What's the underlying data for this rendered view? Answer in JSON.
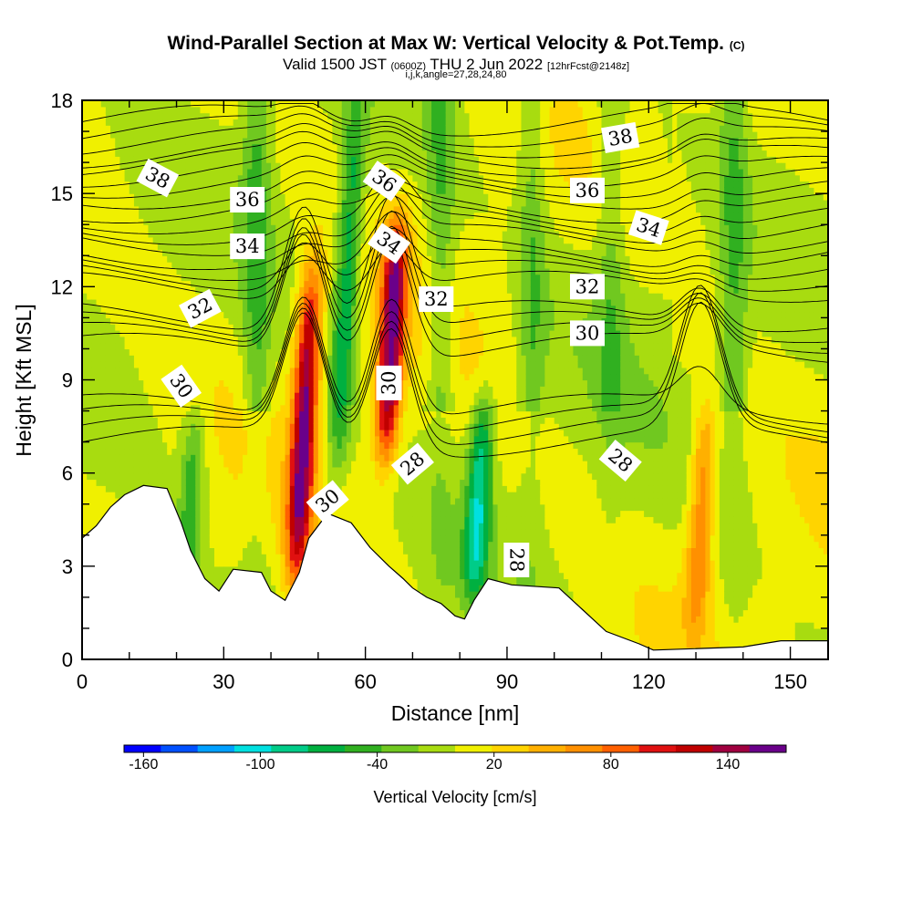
{
  "title": {
    "main": "Wind-Parallel Section at Max W: Vertical Velocity & Pot.Temp.",
    "copyright": "(C)",
    "valid_prefix": "Valid 1500 JST",
    "valid_utc": "(0600Z)",
    "valid_date": "THU 2 Jun 2022",
    "valid_fcst": "[12hrFcst@2148z]",
    "indices": "i,j,k,angle=27,28,24,80"
  },
  "chart_data": {
    "type": "heatmap",
    "xlabel": "Distance [nm]",
    "ylabel": "Height [Kft MSL]",
    "xlim": [
      0,
      158
    ],
    "ylim": [
      0,
      18
    ],
    "xticks": [
      0,
      30,
      60,
      90,
      120,
      150
    ],
    "yticks": [
      0,
      3,
      6,
      9,
      12,
      15,
      18
    ],
    "grid": false,
    "colorbar": {
      "label": "Vertical Velocity [cm/s]",
      "min": -170,
      "max": 170,
      "step": 20,
      "tick_values": [
        -160,
        -100,
        -40,
        20,
        80,
        140
      ],
      "tick_labels": [
        "-160",
        "-100",
        "-40",
        "20",
        "80",
        "140"
      ],
      "colors": [
        "#0000ff",
        "#0050ff",
        "#00a0ff",
        "#00e0e0",
        "#00cc88",
        "#00b040",
        "#30b020",
        "#70c820",
        "#a8dc10",
        "#f0f000",
        "#ffd400",
        "#ffb000",
        "#ff9000",
        "#ff6000",
        "#e01010",
        "#c00000",
        "#a00040",
        "#6a008a"
      ]
    },
    "terrain_kft": [
      [
        0,
        3.9
      ],
      [
        3,
        4.3
      ],
      [
        6,
        4.9
      ],
      [
        9,
        5.3
      ],
      [
        13,
        5.6
      ],
      [
        18,
        5.5
      ],
      [
        21,
        4.4
      ],
      [
        23,
        3.5
      ],
      [
        26,
        2.6
      ],
      [
        29,
        2.2
      ],
      [
        32,
        2.9
      ],
      [
        38,
        2.8
      ],
      [
        40,
        2.2
      ],
      [
        43,
        1.9
      ],
      [
        46,
        2.8
      ],
      [
        48,
        3.9
      ],
      [
        52,
        4.7
      ],
      [
        57,
        4.4
      ],
      [
        61,
        3.6
      ],
      [
        65,
        3.0
      ],
      [
        68,
        2.6
      ],
      [
        70,
        2.3
      ],
      [
        73,
        2.0
      ],
      [
        76,
        1.8
      ],
      [
        79,
        1.4
      ],
      [
        81,
        1.3
      ],
      [
        83,
        1.9
      ],
      [
        86,
        2.6
      ],
      [
        91,
        2.4
      ],
      [
        101,
        2.3
      ],
      [
        106,
        1.6
      ],
      [
        111,
        0.9
      ],
      [
        118,
        0.5
      ],
      [
        121,
        0.3
      ],
      [
        140,
        0.4
      ],
      [
        148,
        0.6
      ],
      [
        158,
        0.6
      ]
    ],
    "updrafts": [
      {
        "x": 47,
        "z_min": 2.5,
        "z_max": 12.5,
        "peak_cms": 155
      },
      {
        "x": 65.5,
        "z_min": 6.5,
        "z_max": 14.0,
        "peak_cms": 160
      },
      {
        "x": 131,
        "z_min": 1.0,
        "z_max": 8.0,
        "peak_cms": 75
      }
    ],
    "downdrafts": [
      {
        "x": 84,
        "z_min": 2.0,
        "z_max": 8.5,
        "peak_cms": -95
      },
      {
        "x": 56,
        "z_min": 6.0,
        "z_max": 18.0,
        "peak_cms": -80
      },
      {
        "x": 23,
        "z_min": 2.0,
        "z_max": 8.0,
        "peak_cms": -55
      }
    ],
    "isentropes": [
      {
        "theta": 28,
        "base_kft": 7.0
      },
      {
        "theta": 30,
        "base_kft": 10.0
      },
      {
        "theta": 32,
        "base_kft": 12.0
      },
      {
        "theta": 34,
        "base_kft": 13.5
      },
      {
        "theta": 36,
        "base_kft": 15.0
      },
      {
        "theta": 38,
        "base_kft": 16.3
      }
    ],
    "contour_labels": [
      {
        "text": "38",
        "x": 16,
        "z": 15.5,
        "angle": 28
      },
      {
        "text": "36",
        "x": 35,
        "z": 14.8,
        "angle": 0
      },
      {
        "text": "34",
        "x": 35,
        "z": 13.3,
        "angle": 0
      },
      {
        "text": "32",
        "x": 25,
        "z": 11.3,
        "angle": -28
      },
      {
        "text": "30",
        "x": 21,
        "z": 8.8,
        "angle": 55
      },
      {
        "text": "36",
        "x": 64,
        "z": 15.4,
        "angle": 35
      },
      {
        "text": "34",
        "x": 65,
        "z": 13.4,
        "angle": 35
      },
      {
        "text": "32",
        "x": 75,
        "z": 11.6,
        "angle": 0
      },
      {
        "text": "30",
        "x": 65,
        "z": 8.9,
        "angle": -90
      },
      {
        "text": "28",
        "x": 70,
        "z": 6.3,
        "angle": -40
      },
      {
        "text": "30",
        "x": 52,
        "z": 5.1,
        "angle": -40
      },
      {
        "text": "28",
        "x": 92,
        "z": 3.2,
        "angle": 90
      },
      {
        "text": "38",
        "x": 114,
        "z": 16.8,
        "angle": -10
      },
      {
        "text": "36",
        "x": 107,
        "z": 15.1,
        "angle": 0
      },
      {
        "text": "34",
        "x": 120,
        "z": 13.9,
        "angle": 18
      },
      {
        "text": "32",
        "x": 107,
        "z": 12.0,
        "angle": 0
      },
      {
        "text": "30",
        "x": 107,
        "z": 10.5,
        "angle": 0
      },
      {
        "text": "28",
        "x": 114,
        "z": 6.4,
        "angle": 40
      }
    ]
  }
}
